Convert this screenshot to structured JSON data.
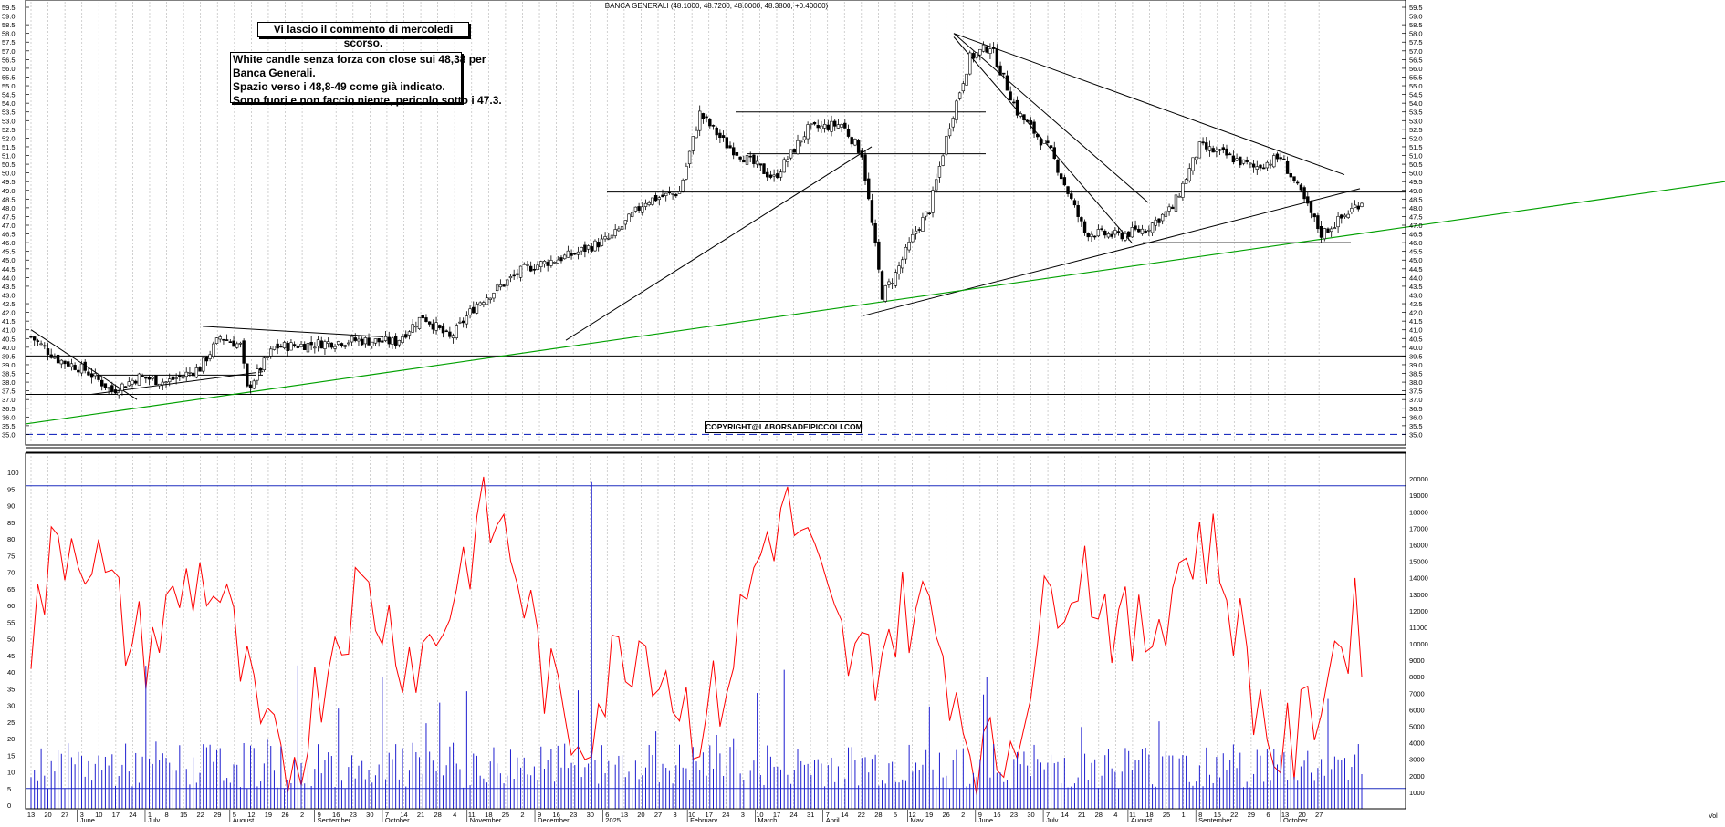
{
  "header": "BANCA GENERALI (48.1000, 48.7200, 48.0000, 48.3800, +0.40000)",
  "notes": {
    "note1": "Vi lascio il commento di mercoledi scorso.",
    "note2": [
      "White candle senza forza con close sui 48,38 per",
      "Banca Generali.",
      "Spazio verso i 48,8-49 come già indicato.",
      "Sono fuori e non faccio niente, pericolo sotto i 47.3."
    ]
  },
  "copyright": "COPYRIGHT@LABORSADEIPICCOLI.COM",
  "colors": {
    "price_candle": "#000000",
    "trendline_green": "#00a000",
    "support_blue": "#1f2fbf",
    "oscillator_red": "#ff0000",
    "volume_blue": "#1f1fd0",
    "grid": "#bdbdbd"
  },
  "chart_data": [
    {
      "type": "candlestick",
      "title": "BANCA GENERALI (48.1000, 48.7200, 48.0000, 48.3800, +0.40000)",
      "last": {
        "open": 48.1,
        "high": 48.72,
        "low": 48.0,
        "close": 48.38,
        "change": 0.4
      },
      "ylim": [
        34.5,
        59.5
      ],
      "y_ticks": [
        "35.0",
        "35.5",
        "36.0",
        "36.5",
        "37.0",
        "37.5",
        "38.0",
        "38.5",
        "39.0",
        "39.5",
        "40.0",
        "40.5",
        "41.0",
        "41.5",
        "42.0",
        "42.5",
        "43.0",
        "43.5",
        "44.0",
        "44.5",
        "45.0",
        "45.5",
        "46.0",
        "46.5",
        "47.0",
        "47.5",
        "48.0",
        "48.5",
        "49.0",
        "49.5",
        "50.0",
        "50.5",
        "51.0",
        "51.5",
        "52.0",
        "52.5",
        "53.0",
        "53.5",
        "54.0",
        "54.5",
        "55.0",
        "55.5",
        "56.0",
        "56.5",
        "57.0",
        "57.5",
        "58.0",
        "58.5",
        "59.0",
        "59.5"
      ],
      "horizontal_levels": [
        {
          "y": 39.5,
          "style": "solid",
          "color": "#000000"
        },
        {
          "y": 37.3,
          "style": "solid",
          "color": "#000000"
        },
        {
          "y": 35.0,
          "style": "dashed",
          "color": "#1f2fbf"
        },
        {
          "y": 48.9,
          "style": "solid",
          "color": "#000000"
        },
        {
          "y": 51.1,
          "style": "solid",
          "color": "#000000"
        },
        {
          "y": 53.5,
          "style": "solid",
          "color": "#000000"
        },
        {
          "y": 46.0,
          "style": "solid",
          "color": "#000000"
        }
      ],
      "grid": true
    },
    {
      "type": "line",
      "name": "oscillator",
      "ylim": [
        0,
        100
      ],
      "y_ticks": [
        "0",
        "5",
        "10",
        "15",
        "20",
        "25",
        "30",
        "35",
        "40",
        "45",
        "50",
        "55",
        "60",
        "65",
        "70",
        "75",
        "80",
        "85",
        "90",
        "95",
        "100"
      ],
      "levels": [
        96,
        5
      ]
    },
    {
      "type": "bar",
      "name": "volume",
      "ylim": [
        0,
        21000
      ],
      "y_ticks": [
        "1000",
        "2000",
        "3000",
        "4000",
        "5000",
        "6000",
        "7000",
        "8000",
        "9000",
        "10000",
        "11000",
        "12000",
        "13000",
        "14000",
        "15000",
        "16000",
        "17000",
        "18000",
        "19000",
        "20000"
      ]
    }
  ],
  "x_axis": {
    "day_ticks": [
      "13",
      "20",
      "27",
      "3",
      "10",
      "17",
      "24",
      "1",
      "8",
      "15",
      "22",
      "29",
      "5",
      "12",
      "19",
      "26",
      "2",
      "9",
      "16",
      "23",
      "30",
      "7",
      "14",
      "21",
      "28",
      "4",
      "11",
      "18",
      "25",
      "2",
      "9",
      "16",
      "23",
      "30",
      "6",
      "13",
      "20",
      "27",
      "3",
      "10",
      "17",
      "24",
      "3",
      "10",
      "17",
      "24",
      "31",
      "7",
      "14",
      "22",
      "28",
      "5",
      "12",
      "19",
      "26",
      "2",
      "9",
      "16",
      "23",
      "30",
      "7",
      "14",
      "21",
      "28",
      "4",
      "11",
      "18",
      "25",
      "1",
      "8",
      "15",
      "22",
      "29",
      "6",
      "13",
      "20",
      "27"
    ],
    "month_labels": [
      "June",
      "July",
      "August",
      "September",
      "October",
      "November",
      "December",
      "2025",
      "February",
      "March",
      "April",
      "May",
      "June",
      "July",
      "August",
      "September",
      "October"
    ],
    "corner_label": "Vol"
  }
}
